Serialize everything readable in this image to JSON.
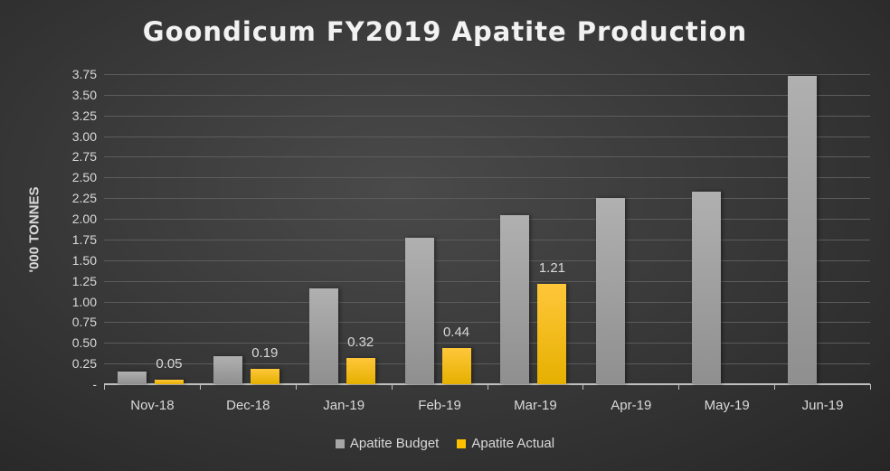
{
  "chart_data": {
    "type": "bar",
    "title": "Goondicum FY2019 Apatite Production",
    "xlabel": "",
    "ylabel": "'000 TONNES",
    "ylim": [
      0,
      3.75
    ],
    "yticks": [
      "-",
      "0.25",
      "0.50",
      "0.75",
      "1.00",
      "1.25",
      "1.50",
      "1.75",
      "2.00",
      "2.25",
      "2.50",
      "2.75",
      "3.00",
      "3.25",
      "3.50",
      "3.75"
    ],
    "grid": true,
    "legend_position": "bottom",
    "categories": [
      "Nov-18",
      "Dec-18",
      "Jan-19",
      "Feb-19",
      "Mar-19",
      "Apr-19",
      "May-19",
      "Jun-19"
    ],
    "series": [
      {
        "name": "Apatite Budget",
        "color": "#a6a6a6",
        "values": [
          0.15,
          0.34,
          1.16,
          1.77,
          2.04,
          2.25,
          2.33,
          3.73
        ]
      },
      {
        "name": "Apatite Actual",
        "color": "#ffc000",
        "values": [
          0.05,
          0.19,
          0.32,
          0.44,
          1.21,
          null,
          null,
          null
        ],
        "data_labels": [
          "0.05",
          "0.19",
          "0.32",
          "0.44",
          "1.21",
          "",
          "",
          ""
        ]
      }
    ]
  }
}
